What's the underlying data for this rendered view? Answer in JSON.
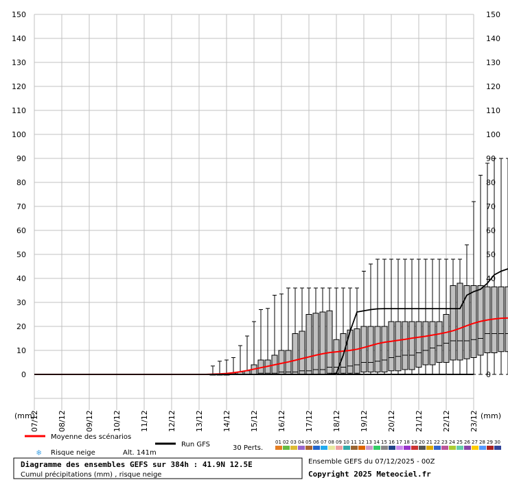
{
  "chart_data": {
    "type": "boxplot",
    "title": "Diagramme des ensembles GEFS sur 384h : 41.9N 12.5E",
    "subtitle": "Cumul précipitations (mm) , risque neige",
    "ylabel": "(mm)",
    "ylim": [
      0,
      150
    ],
    "yticks": [
      0,
      10,
      20,
      30,
      40,
      50,
      60,
      70,
      80,
      90,
      100,
      110,
      120,
      130,
      140,
      150
    ],
    "x_start": "07/12",
    "x_step_hours": 6,
    "date_labels": [
      "07/12",
      "08/12",
      "09/12",
      "10/12",
      "11/12",
      "12/12",
      "13/12",
      "14/12",
      "15/12",
      "16/12",
      "17/12",
      "18/12",
      "19/12",
      "20/12",
      "21/12",
      "22/12",
      "23/12"
    ],
    "grid": true,
    "series": [
      {
        "name": "Moyenne des scénarios",
        "color": "#ff0000",
        "values": [
          0,
          0,
          0,
          0,
          0,
          0,
          0,
          0,
          0,
          0,
          0,
          0,
          0,
          0,
          0,
          0,
          0,
          0,
          0,
          0,
          0,
          0,
          0,
          0,
          0,
          0,
          0.1,
          0.2,
          0.4,
          0.7,
          1.1,
          1.6,
          2.2,
          2.8,
          3.4,
          4.0,
          4.6,
          5.2,
          5.9,
          6.6,
          7.3,
          8.0,
          8.6,
          9.1,
          9.4,
          9.7,
          10.0,
          10.5,
          11.2,
          12.0,
          12.8,
          13.4,
          13.8,
          14.2,
          14.6,
          15.1,
          15.5,
          15.9,
          16.4,
          16.9,
          17.5,
          18.2,
          19.2,
          20.3,
          21.3,
          22.1,
          22.7,
          23.1,
          23.4,
          23.5
        ]
      },
      {
        "name": "Run GFS",
        "color": "#000000",
        "values": [
          0,
          0,
          0,
          0,
          0,
          0,
          0,
          0,
          0,
          0,
          0,
          0,
          0,
          0,
          0,
          0,
          0,
          0,
          0,
          0,
          0,
          0,
          0,
          0,
          0,
          0,
          0,
          0,
          0,
          0,
          0,
          0,
          0,
          0,
          0,
          0,
          0,
          0,
          0,
          0,
          0,
          0,
          0,
          0,
          0.5,
          8.0,
          18.0,
          26.0,
          26.5,
          27.0,
          27.3,
          27.4,
          27.4,
          27.4,
          27.4,
          27.4,
          27.4,
          27.4,
          27.4,
          27.4,
          27.4,
          27.4,
          27.4,
          33.0,
          34.5,
          35.5,
          38.0,
          41.5,
          43.0,
          44.0
        ]
      }
    ],
    "boxes": [
      {
        "i": 26,
        "q1": 0,
        "med": 0,
        "q3": 0,
        "max": 3.5
      },
      {
        "i": 27,
        "q1": 0,
        "med": 0,
        "q3": 0,
        "max": 5.5
      },
      {
        "i": 28,
        "q1": 0,
        "med": 0,
        "q3": 0,
        "max": 6
      },
      {
        "i": 29,
        "q1": 0,
        "med": 0,
        "q3": 0.5,
        "max": 7
      },
      {
        "i": 30,
        "q1": 0,
        "med": 0,
        "q3": 1,
        "max": 12
      },
      {
        "i": 31,
        "q1": 0,
        "med": 0,
        "q3": 1.5,
        "max": 16
      },
      {
        "i": 32,
        "q1": 0,
        "med": 0,
        "q3": 4,
        "max": 22
      },
      {
        "i": 33,
        "q1": 0,
        "med": 0.5,
        "q3": 6,
        "max": 27
      },
      {
        "i": 34,
        "q1": 0,
        "med": 0.5,
        "q3": 6,
        "max": 27.5
      },
      {
        "i": 35,
        "q1": 0,
        "med": 0.5,
        "q3": 8,
        "max": 33
      },
      {
        "i": 36,
        "q1": 0,
        "med": 1,
        "q3": 10,
        "max": 33.5
      },
      {
        "i": 37,
        "q1": 0,
        "med": 1,
        "q3": 10,
        "max": 36
      },
      {
        "i": 38,
        "q1": 0,
        "med": 1,
        "q3": 17,
        "max": 36
      },
      {
        "i": 39,
        "q1": 0,
        "med": 1.5,
        "q3": 18,
        "max": 36
      },
      {
        "i": 40,
        "q1": 0,
        "med": 1.5,
        "q3": 25,
        "max": 36
      },
      {
        "i": 41,
        "q1": 0,
        "med": 2,
        "q3": 25.5,
        "max": 36
      },
      {
        "i": 42,
        "q1": 0,
        "med": 2,
        "q3": 26,
        "max": 36
      },
      {
        "i": 43,
        "q1": 0.5,
        "med": 3,
        "q3": 26.5,
        "max": 36
      },
      {
        "i": 44,
        "q1": 0.5,
        "med": 3,
        "q3": 14.5,
        "max": 36
      },
      {
        "i": 45,
        "q1": 0.5,
        "med": 3,
        "q3": 17,
        "max": 36
      },
      {
        "i": 46,
        "q1": 0.5,
        "med": 3.5,
        "q3": 18.5,
        "max": 36
      },
      {
        "i": 47,
        "q1": 0.5,
        "med": 4,
        "q3": 19,
        "max": 36
      },
      {
        "i": 48,
        "q1": 1,
        "med": 5,
        "q3": 20,
        "max": 43
      },
      {
        "i": 49,
        "q1": 1,
        "med": 5,
        "q3": 20,
        "max": 46
      },
      {
        "i": 50,
        "q1": 1,
        "med": 5.5,
        "q3": 20,
        "max": 48
      },
      {
        "i": 51,
        "q1": 1,
        "med": 6,
        "q3": 20,
        "max": 48
      },
      {
        "i": 52,
        "q1": 1.5,
        "med": 7,
        "q3": 22,
        "max": 48
      },
      {
        "i": 53,
        "q1": 1.5,
        "med": 7.5,
        "q3": 22,
        "max": 48
      },
      {
        "i": 54,
        "q1": 2,
        "med": 8,
        "q3": 22,
        "max": 48
      },
      {
        "i": 55,
        "q1": 2,
        "med": 8,
        "q3": 22,
        "max": 48
      },
      {
        "i": 56,
        "q1": 3,
        "med": 9,
        "q3": 22,
        "max": 48
      },
      {
        "i": 57,
        "q1": 4,
        "med": 10,
        "q3": 22,
        "max": 48
      },
      {
        "i": 58,
        "q1": 4,
        "med": 11,
        "q3": 22,
        "max": 48
      },
      {
        "i": 59,
        "q1": 5,
        "med": 12,
        "q3": 22,
        "max": 48
      },
      {
        "i": 60,
        "q1": 5,
        "med": 13,
        "q3": 25,
        "max": 48
      },
      {
        "i": 61,
        "q1": 6,
        "med": 14,
        "q3": 37,
        "max": 48
      },
      {
        "i": 62,
        "q1": 6,
        "med": 14,
        "q3": 38,
        "max": 48
      },
      {
        "i": 63,
        "q1": 6.5,
        "med": 14,
        "q3": 37,
        "max": 54
      },
      {
        "i": 64,
        "q1": 7,
        "med": 14.5,
        "q3": 37,
        "max": 72
      },
      {
        "i": 65,
        "q1": 8,
        "med": 15,
        "q3": 37,
        "max": 83
      },
      {
        "i": 66,
        "q1": 9,
        "med": 17,
        "q3": 36.5,
        "max": 88
      },
      {
        "i": 67,
        "q1": 9,
        "med": 17,
        "q3": 36.5,
        "max": 90
      },
      {
        "i": 68,
        "q1": 9.5,
        "med": 17,
        "q3": 36.5,
        "max": 90
      },
      {
        "i": 69,
        "q1": 9.5,
        "med": 17,
        "q3": 36.5,
        "max": 90
      }
    ]
  },
  "labels": {
    "y_unit_left": "(mm)",
    "y_unit_right": "(mm)",
    "legend_mean": "Moyenne des scénarios",
    "legend_gfs": "Run GFS",
    "legend_snow": "Risque neige",
    "altitude": "Alt. 141m",
    "perts": "30 Perts.",
    "ensemble_info": "Ensemble GEFS du 07/12/2025 - 00Z",
    "copyright": "Copyright 2025 Meteociel.fr"
  },
  "colors": {
    "mean_line": "#ff0000",
    "gfs_line": "#000000",
    "box_fill": "#c0c0c0",
    "grid": "#c0c0c0",
    "snow_icon": "#4aa8e8"
  },
  "perturbations": {
    "labels": [
      "01",
      "02",
      "03",
      "04",
      "05",
      "06",
      "07",
      "08",
      "09",
      "10",
      "11",
      "12",
      "13",
      "14",
      "15",
      "16",
      "17",
      "18",
      "19",
      "20",
      "21",
      "22",
      "23",
      "24",
      "25",
      "26",
      "27",
      "28",
      "29",
      "30"
    ],
    "colors": [
      "#e67e22",
      "#66bb44",
      "#ddbb33",
      "#9966cc",
      "#aa6633",
      "#2266cc",
      "#22aaee",
      "#e8e8a0",
      "#f0a0a0",
      "#33aaaa",
      "#996633",
      "#dd6600",
      "#cc99cc",
      "#33cc66",
      "#888888",
      "#224488",
      "#cc88ee",
      "#9933cc",
      "#cc3333",
      "#555555",
      "#ddaa00",
      "#3366cc",
      "#bb5599",
      "#aacc33",
      "#66ccaa",
      "#8844aa",
      "#ffcc00",
      "#5599ff",
      "#aa2222",
      "#334499"
    ]
  }
}
